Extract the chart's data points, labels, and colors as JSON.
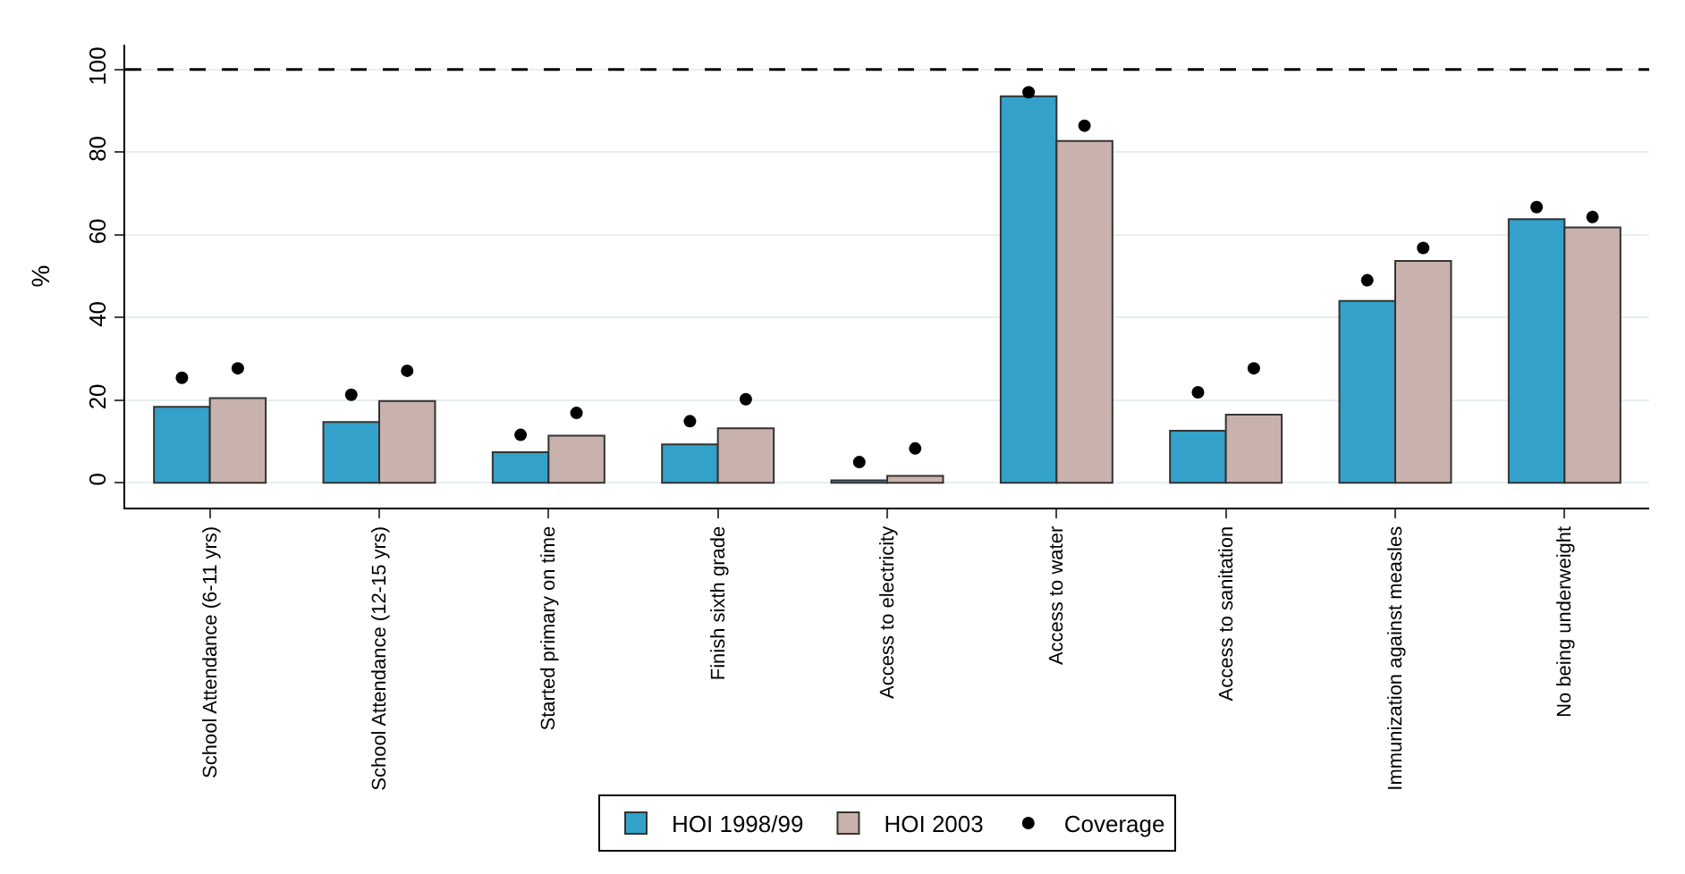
{
  "chart_data": {
    "type": "bar",
    "ylabel": "%",
    "categories": [
      "School Attendance (6-11 yrs)",
      "School Attendance (12-15 yrs)",
      "Started primary on time",
      "Finish sixth grade",
      "Access to electricity",
      "Access to water",
      "Access to sanitation",
      "Immunization against measles",
      "No being underweight"
    ],
    "series": [
      {
        "name": "HOI 1998/99",
        "color": "#33a1c9",
        "values": [
          18.4,
          14.7,
          7.4,
          9.3,
          0.6,
          93.5,
          12.6,
          44.0,
          63.8
        ]
      },
      {
        "name": "HOI 2003",
        "color": "#c9b2ad",
        "values": [
          20.5,
          19.8,
          11.4,
          13.2,
          1.7,
          82.7,
          16.5,
          53.7,
          61.8
        ]
      },
      {
        "name": "Coverage",
        "type": "scatter",
        "color": "#000000",
        "values": [
          25.4,
          21.3,
          11.6,
          14.9,
          5.0,
          94.5,
          21.9,
          49.0,
          66.7
        ]
      },
      {
        "type": "scatter",
        "color": "#000000",
        "values": [
          27.7,
          27.1,
          16.9,
          20.2,
          8.3,
          86.4,
          27.7,
          56.8,
          64.3
        ]
      }
    ],
    "ylim": [
      -6,
      106
    ],
    "yticks": [
      0,
      20,
      40,
      60,
      80,
      100
    ],
    "grid": "y",
    "marker": "circle",
    "ref_lines": [
      {
        "axis": "y",
        "value": 100,
        "line_style": "dashed",
        "color": "#000000"
      }
    ],
    "legend": "bottom"
  }
}
